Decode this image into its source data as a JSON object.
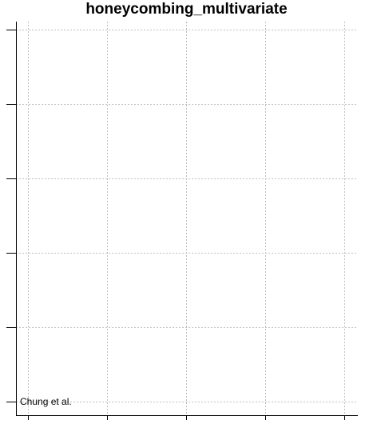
{
  "chart_data": {
    "type": "scatter",
    "title": "honeycombing_multivariate",
    "xlabel": "",
    "ylabel": "",
    "grid": true,
    "x_ticks": 5,
    "y_ticks": 6,
    "points": [
      {
        "label": "Chung et al.",
        "x": 0,
        "y": 0
      }
    ]
  }
}
